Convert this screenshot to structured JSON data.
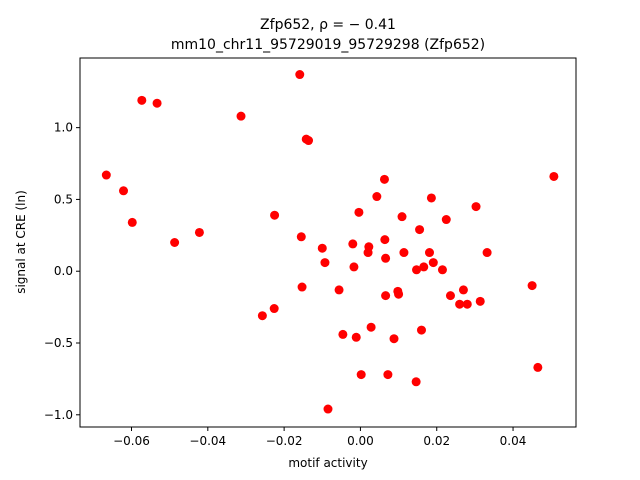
{
  "chart_data": {
    "type": "scatter",
    "title_line1": "Zfp652, ρ = − 0.41",
    "title_line2": "mm10_chr11_95729019_95729298 (Zfp652)",
    "xlabel": "motif activity",
    "ylabel": "signal at CRE (ln)",
    "xlim": [
      -0.0735,
      0.0565
    ],
    "ylim": [
      -1.085,
      1.485
    ],
    "xticks": [
      -0.06,
      -0.04,
      -0.02,
      0.0,
      0.02,
      0.04
    ],
    "xtick_labels": [
      "−0.06",
      "−0.04",
      "−0.02",
      "0.00",
      "0.02",
      "0.04"
    ],
    "yticks": [
      -1.0,
      -0.5,
      0.0,
      0.5,
      1.0
    ],
    "ytick_labels": [
      "−1.0",
      "−0.5",
      "0.0",
      "0.5",
      "1.0"
    ],
    "grid": false,
    "marker_color": "#ff0000",
    "points": [
      {
        "x": -0.0666,
        "y": 0.67
      },
      {
        "x": -0.0621,
        "y": 0.56
      },
      {
        "x": -0.0598,
        "y": 0.34
      },
      {
        "x": -0.0573,
        "y": 1.19
      },
      {
        "x": -0.0533,
        "y": 1.17
      },
      {
        "x": -0.0487,
        "y": 0.2
      },
      {
        "x": -0.0422,
        "y": 0.27
      },
      {
        "x": -0.0313,
        "y": 1.08
      },
      {
        "x": -0.0257,
        "y": -0.31
      },
      {
        "x": -0.0225,
        "y": 0.39
      },
      {
        "x": -0.0226,
        "y": -0.26
      },
      {
        "x": -0.0159,
        "y": 1.37
      },
      {
        "x": -0.0155,
        "y": 0.24
      },
      {
        "x": -0.0153,
        "y": -0.11
      },
      {
        "x": -0.0142,
        "y": 0.92
      },
      {
        "x": -0.0136,
        "y": 0.91
      },
      {
        "x": -0.01,
        "y": 0.16
      },
      {
        "x": -0.0093,
        "y": 0.06
      },
      {
        "x": -0.0085,
        "y": -0.96
      },
      {
        "x": -0.0056,
        "y": -0.13
      },
      {
        "x": -0.0046,
        "y": -0.44
      },
      {
        "x": -0.002,
        "y": 0.19
      },
      {
        "x": -0.0017,
        "y": 0.03
      },
      {
        "x": -0.0011,
        "y": -0.46
      },
      {
        "x": -0.0004,
        "y": 0.41
      },
      {
        "x": 0.0002,
        "y": -0.72
      },
      {
        "x": 0.002,
        "y": 0.13
      },
      {
        "x": 0.0022,
        "y": 0.17
      },
      {
        "x": 0.0028,
        "y": -0.39
      },
      {
        "x": 0.0043,
        "y": 0.52
      },
      {
        "x": 0.0063,
        "y": 0.64
      },
      {
        "x": 0.0064,
        "y": 0.22
      },
      {
        "x": 0.0066,
        "y": 0.09
      },
      {
        "x": 0.0066,
        "y": -0.17
      },
      {
        "x": 0.0072,
        "y": -0.72
      },
      {
        "x": 0.0088,
        "y": -0.47
      },
      {
        "x": 0.0098,
        "y": -0.14
      },
      {
        "x": 0.01,
        "y": -0.16
      },
      {
        "x": 0.0109,
        "y": 0.38
      },
      {
        "x": 0.0114,
        "y": 0.13
      },
      {
        "x": 0.0146,
        "y": -0.77
      },
      {
        "x": 0.0147,
        "y": 0.01
      },
      {
        "x": 0.0155,
        "y": 0.29
      },
      {
        "x": 0.016,
        "y": -0.41
      },
      {
        "x": 0.0166,
        "y": 0.03
      },
      {
        "x": 0.0181,
        "y": 0.13
      },
      {
        "x": 0.0186,
        "y": 0.51
      },
      {
        "x": 0.0191,
        "y": 0.06
      },
      {
        "x": 0.0215,
        "y": 0.01
      },
      {
        "x": 0.0225,
        "y": 0.36
      },
      {
        "x": 0.0236,
        "y": -0.17
      },
      {
        "x": 0.026,
        "y": -0.23
      },
      {
        "x": 0.027,
        "y": -0.13
      },
      {
        "x": 0.028,
        "y": -0.23
      },
      {
        "x": 0.0303,
        "y": 0.45
      },
      {
        "x": 0.0314,
        "y": -0.21
      },
      {
        "x": 0.0332,
        "y": 0.13
      },
      {
        "x": 0.045,
        "y": -0.1
      },
      {
        "x": 0.0465,
        "y": -0.67
      },
      {
        "x": 0.0507,
        "y": 0.66
      }
    ]
  }
}
